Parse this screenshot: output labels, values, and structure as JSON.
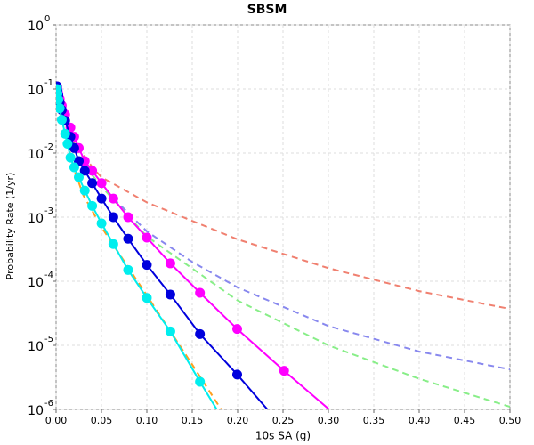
{
  "chart_data": {
    "type": "line",
    "title": "SBSM",
    "xlabel": "10s SA (g)",
    "ylabel": "Probability Rate (1/yr)",
    "xlim": [
      0,
      0.5
    ],
    "ylim": [
      1e-06,
      1
    ],
    "ylog": true,
    "grid": true,
    "xticks": [
      {
        "value": 0,
        "label": "0.00"
      },
      {
        "value": 0.05,
        "label": "0.05"
      },
      {
        "value": 0.1,
        "label": "0.10"
      },
      {
        "value": 0.15,
        "label": "0.15"
      },
      {
        "value": 0.2,
        "label": "0.20"
      },
      {
        "value": 0.25,
        "label": "0.25"
      },
      {
        "value": 0.3,
        "label": "0.30"
      },
      {
        "value": 0.35,
        "label": "0.35"
      },
      {
        "value": 0.4,
        "label": "0.40"
      },
      {
        "value": 0.45,
        "label": "0.45"
      },
      {
        "value": 0.5,
        "label": "0.50"
      }
    ],
    "yticks": [
      {
        "value": 1e-06,
        "label": "10",
        "exponent": "-6"
      },
      {
        "value": 1e-05,
        "label": "10",
        "exponent": "-5"
      },
      {
        "value": 0.0001,
        "label": "10",
        "exponent": "-4"
      },
      {
        "value": 0.001,
        "label": "10",
        "exponent": "-3"
      },
      {
        "value": 0.01,
        "label": "10",
        "exponent": "-2"
      },
      {
        "value": 0.1,
        "label": "10",
        "exponent": "-1"
      },
      {
        "value": 1,
        "label": "10",
        "exponent": "0"
      }
    ],
    "series": [
      {
        "color": "#f08070",
        "dash": true,
        "x": [
          0.001,
          0.005,
          0.01,
          0.02,
          0.04,
          0.05,
          0.1,
          0.2,
          0.3,
          0.4,
          0.5
        ],
        "values": [
          0.11,
          0.06,
          0.035,
          0.015,
          0.006,
          0.0042,
          0.0017,
          0.00045,
          0.00016,
          7e-05,
          3.7e-05
        ]
      },
      {
        "color": "#8888ee",
        "dash": true,
        "x": [
          0.001,
          0.005,
          0.01,
          0.02,
          0.04,
          0.05,
          0.1,
          0.15,
          0.2,
          0.3,
          0.4,
          0.5
        ],
        "values": [
          0.11,
          0.055,
          0.032,
          0.013,
          0.0045,
          0.003,
          0.0006,
          0.0002,
          8e-05,
          2e-05,
          8e-06,
          4.2e-06
        ]
      },
      {
        "color": "#88ee88",
        "dash": true,
        "x": [
          0.001,
          0.005,
          0.01,
          0.02,
          0.04,
          0.05,
          0.1,
          0.2,
          0.3,
          0.4,
          0.5
        ],
        "values": [
          0.11,
          0.055,
          0.032,
          0.013,
          0.0045,
          0.003,
          0.0005,
          5e-05,
          1e-05,
          3e-06,
          1.1e-06
        ]
      },
      {
        "color": "#ffa020",
        "dash": true,
        "x": [
          0.001,
          0.005,
          0.01,
          0.02,
          0.03,
          0.05,
          0.1,
          0.15,
          0.2
        ],
        "values": [
          0.1,
          0.04,
          0.02,
          0.0055,
          0.0022,
          0.0007,
          6e-05,
          5e-06,
          4e-07
        ]
      },
      {
        "color": "#ff00ff",
        "markers": true,
        "x": [
          0.001,
          0.0016,
          0.0025,
          0.004,
          0.0063,
          0.01,
          0.0158,
          0.02,
          0.025,
          0.0316,
          0.0398,
          0.0501,
          0.0631,
          0.0794,
          0.1,
          0.1259,
          0.1585,
          0.1995,
          0.2512,
          0.3162
        ],
        "values": [
          0.11,
          0.1,
          0.085,
          0.07,
          0.055,
          0.04,
          0.025,
          0.018,
          0.012,
          0.0075,
          0.0053,
          0.0034,
          0.00195,
          0.001,
          0.00048,
          0.00019,
          6.6e-05,
          1.8e-05,
          4e-06,
          6.5e-07
        ]
      },
      {
        "color": "#0000dd",
        "markers": true,
        "x": [
          0.001,
          0.0016,
          0.0025,
          0.004,
          0.0063,
          0.01,
          0.0158,
          0.02,
          0.025,
          0.0316,
          0.0398,
          0.0501,
          0.0631,
          0.0794,
          0.1,
          0.1259,
          0.1585,
          0.1995,
          0.2512
        ],
        "values": [
          0.11,
          0.095,
          0.08,
          0.062,
          0.047,
          0.032,
          0.018,
          0.012,
          0.0075,
          0.0053,
          0.0034,
          0.00195,
          0.001,
          0.00046,
          0.00018,
          6.2e-05,
          1.5e-05,
          3.5e-06,
          5e-07
        ]
      },
      {
        "color": "#00eeee",
        "markers": true,
        "x": [
          0.001,
          0.0016,
          0.0025,
          0.004,
          0.0063,
          0.01,
          0.0126,
          0.0158,
          0.02,
          0.025,
          0.0316,
          0.0398,
          0.0501,
          0.0631,
          0.0794,
          0.1,
          0.1259,
          0.1585,
          0.1995
        ],
        "values": [
          0.1,
          0.085,
          0.068,
          0.05,
          0.033,
          0.02,
          0.014,
          0.0085,
          0.006,
          0.0042,
          0.0026,
          0.0015,
          0.0008,
          0.00038,
          0.00015,
          5.5e-05,
          1.65e-05,
          2.7e-06,
          3e-07
        ]
      }
    ]
  }
}
